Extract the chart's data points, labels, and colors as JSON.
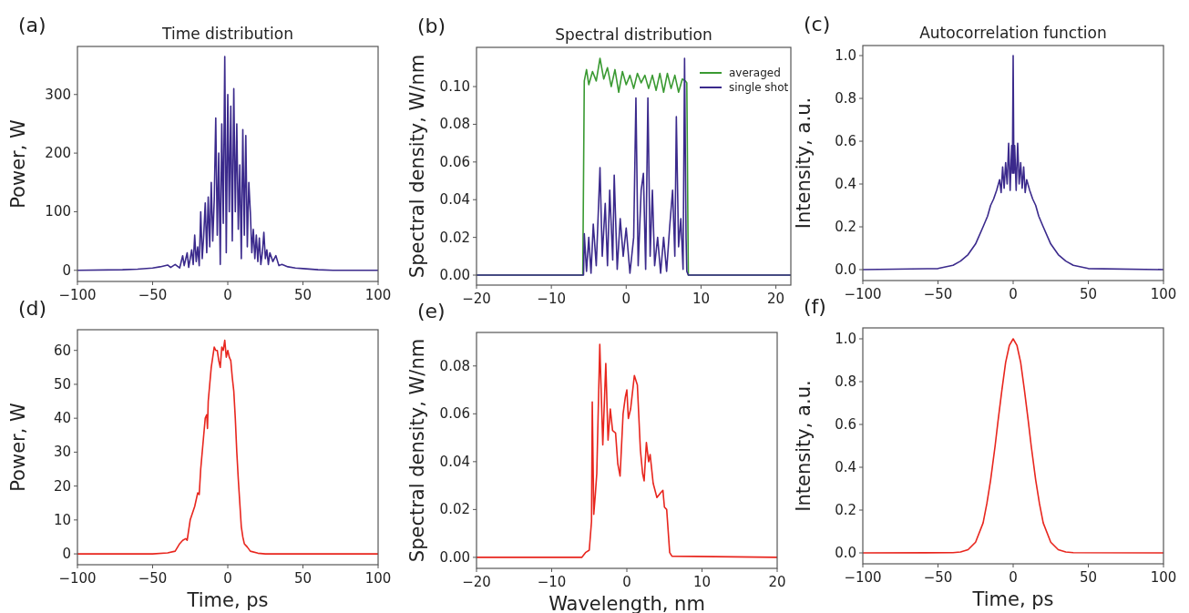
{
  "chart_data": [
    {
      "type": "line",
      "title": "Time distribution",
      "ylabel": "Power, W",
      "annotations": [
        "(a)"
      ],
      "xlim": [
        -100,
        100
      ],
      "ylim": [
        -19,
        382
      ],
      "xticks": [
        {
          "value": -100,
          "label": "−100"
        },
        {
          "value": -50,
          "label": "−50"
        },
        0,
        50,
        100
      ],
      "yticks": [
        0,
        100,
        200,
        300
      ],
      "grid": false,
      "legend": false,
      "series": [
        {
          "color": "#3b2a8c",
          "x": [
            -100,
            -70,
            -60,
            -50,
            -45,
            -40,
            -38,
            -35,
            -32,
            -30,
            -29,
            -27,
            -26,
            -24,
            -23,
            -22,
            -21,
            -20,
            -19,
            -18,
            -17,
            -16,
            -15,
            -14,
            -13,
            -12,
            -11,
            -10,
            -9,
            -8,
            -7,
            -6,
            -5,
            -4,
            -3,
            -2,
            -1,
            0,
            1,
            2,
            3,
            4,
            5,
            6,
            7,
            8,
            9,
            10,
            11,
            12,
            13,
            14,
            15,
            16,
            17,
            18,
            19,
            20,
            21,
            22,
            23,
            24,
            25,
            26,
            27,
            28,
            30,
            32,
            34,
            36,
            40,
            45,
            50,
            60,
            70,
            100
          ],
          "values": [
            0,
            1,
            2,
            4,
            6,
            9,
            5,
            10,
            4,
            25,
            8,
            30,
            5,
            35,
            10,
            60,
            15,
            40,
            8,
            100,
            20,
            60,
            115,
            30,
            125,
            40,
            150,
            50,
            120,
            260,
            60,
            200,
            10,
            250,
            80,
            365,
            30,
            300,
            100,
            280,
            50,
            310,
            100,
            250,
            70,
            180,
            20,
            240,
            60,
            230,
            40,
            150,
            100,
            30,
            70,
            20,
            60,
            15,
            55,
            10,
            30,
            65,
            20,
            35,
            10,
            30,
            15,
            25,
            8,
            10,
            6,
            4,
            3,
            1,
            0,
            0
          ]
        }
      ]
    },
    {
      "type": "line",
      "title": "Spectral distribution",
      "ylabel": "Spectral density, W/nm",
      "annotations": [
        "(b)"
      ],
      "xlim": [
        -20,
        22
      ],
      "ylim": [
        -0.0053,
        0.1208
      ],
      "xticks": [
        {
          "value": -20,
          "label": "−20"
        },
        {
          "value": -10,
          "label": "−10"
        },
        0,
        10,
        20
      ],
      "yticks": [
        {
          "value": 0,
          "label": "0.00"
        },
        {
          "value": 0.02,
          "label": "0.02"
        },
        {
          "value": 0.04,
          "label": "0.04"
        },
        {
          "value": 0.06,
          "label": "0.06"
        },
        {
          "value": 0.08,
          "label": "0.08"
        },
        {
          "value": 0.1,
          "label": "0.10"
        }
      ],
      "grid": false,
      "legend": "top right",
      "series": [
        {
          "name": "averaged",
          "color": "#3a9a32",
          "x": [
            -20,
            -5.8,
            -5.6,
            -5.3,
            -5,
            -4.5,
            -4,
            -3.5,
            -3,
            -2.5,
            -2,
            -1.5,
            -1,
            -0.5,
            0,
            0.5,
            1,
            1.5,
            2,
            2.5,
            3,
            3.5,
            4,
            4.5,
            5,
            5.5,
            6,
            6.5,
            7,
            7.5,
            7.9,
            8.1,
            8.3,
            22
          ],
          "values": [
            0,
            0,
            0.103,
            0.109,
            0.101,
            0.108,
            0.103,
            0.115,
            0.104,
            0.11,
            0.1,
            0.109,
            0.097,
            0.108,
            0.101,
            0.106,
            0.099,
            0.107,
            0.102,
            0.106,
            0.099,
            0.106,
            0.098,
            0.107,
            0.097,
            0.107,
            0.099,
            0.106,
            0.097,
            0.104,
            0.103,
            0.102,
            0,
            0
          ]
        },
        {
          "name": "single shot",
          "color": "#3b2a8c",
          "x": [
            -20,
            -5.7,
            -5.6,
            -5.3,
            -5,
            -4.7,
            -4.4,
            -4,
            -3.5,
            -3.2,
            -2.8,
            -2.5,
            -2.2,
            -1.8,
            -1.6,
            -1.2,
            -0.8,
            -0.4,
            0,
            0.5,
            1,
            1.3,
            1.6,
            2,
            2.3,
            2.6,
            2.9,
            3.2,
            3.5,
            3.8,
            4.2,
            4.6,
            5,
            5.4,
            5.8,
            6.2,
            6.5,
            6.7,
            7,
            7.3,
            7.6,
            7.8,
            8,
            8.1,
            8.3,
            22
          ],
          "values": [
            0,
            0,
            0.022,
            0.002,
            0.02,
            0.001,
            0.027,
            0.005,
            0.057,
            0.01,
            0.038,
            0.005,
            0.045,
            0.008,
            0.053,
            0.003,
            0.03,
            0.01,
            0.025,
            0.001,
            0.02,
            0.094,
            0.005,
            0.045,
            0.054,
            0.003,
            0.094,
            0.01,
            0.045,
            0.005,
            0.02,
            0.001,
            0.02,
            0.002,
            0.025,
            0.045,
            0.01,
            0.084,
            0.015,
            0.03,
            0.003,
            0.115,
            0.02,
            0.002,
            0,
            0
          ]
        }
      ]
    },
    {
      "type": "line",
      "title": "Autocorrelation function",
      "ylabel": "Intensity, a.u.",
      "annotations": [
        "(c)"
      ],
      "xlim": [
        -100,
        100
      ],
      "ylim": [
        -0.051,
        1.047
      ],
      "xticks": [
        {
          "value": -100,
          "label": "−100"
        },
        {
          "value": -50,
          "label": "−50"
        },
        0,
        50,
        100
      ],
      "yticks": [
        {
          "value": 0,
          "label": "0.0"
        },
        0.2,
        0.4,
        0.6,
        0.8,
        {
          "value": 1,
          "label": "1.0"
        }
      ],
      "grid": false,
      "legend": false,
      "series": [
        {
          "color": "#3b2a8c",
          "x": [
            -100,
            -50,
            -40,
            -35,
            -30,
            -25,
            -20,
            -17,
            -15,
            -13,
            -11,
            -9,
            -8,
            -7,
            -6,
            -5,
            -4,
            -3,
            -2,
            -1,
            -0.5,
            0,
            0.5,
            1,
            2,
            3,
            4,
            5,
            6,
            7,
            8,
            9,
            11,
            13,
            15,
            17,
            20,
            25,
            30,
            35,
            40,
            50,
            100
          ],
          "values": [
            0,
            0.005,
            0.02,
            0.04,
            0.07,
            0.12,
            0.2,
            0.25,
            0.3,
            0.33,
            0.37,
            0.42,
            0.36,
            0.48,
            0.38,
            0.5,
            0.4,
            0.59,
            0.37,
            0.58,
            0.45,
            1,
            0.45,
            0.58,
            0.37,
            0.59,
            0.4,
            0.5,
            0.38,
            0.48,
            0.36,
            0.42,
            0.37,
            0.33,
            0.3,
            0.25,
            0.2,
            0.12,
            0.07,
            0.04,
            0.02,
            0.005,
            0
          ]
        }
      ]
    },
    {
      "type": "line",
      "xlabel": "Time, ps",
      "ylabel": "Power, W",
      "annotations": [
        "(d)"
      ],
      "xlim": [
        -100,
        100
      ],
      "ylim": [
        -3.2,
        66.1
      ],
      "xticks": [
        {
          "value": -100,
          "label": "−100"
        },
        {
          "value": -50,
          "label": "−50"
        },
        0,
        50,
        100
      ],
      "yticks": [
        0,
        10,
        20,
        30,
        40,
        50,
        60
      ],
      "grid": false,
      "legend": false,
      "series": [
        {
          "color": "#e8261e",
          "x": [
            -100,
            -50,
            -40,
            -35,
            -32,
            -30,
            -28,
            -27,
            -25,
            -22,
            -20,
            -19,
            -18,
            -16,
            -15,
            -14,
            -13.5,
            -13,
            -12,
            -11,
            -10,
            -9,
            -8,
            -7,
            -6,
            -5,
            -4,
            -3,
            -2,
            -1,
            0,
            1,
            2,
            3,
            4,
            5,
            6,
            7,
            8,
            9,
            10,
            11,
            13,
            15,
            20,
            25,
            100
          ],
          "values": [
            0,
            0,
            0.3,
            0.8,
            3,
            4,
            4.5,
            4,
            10,
            14,
            18,
            17.5,
            25,
            35,
            40,
            41,
            37,
            45,
            50,
            55,
            58,
            61,
            60,
            60,
            57,
            55,
            61,
            60,
            63,
            58,
            60,
            58,
            57,
            52,
            48,
            40,
            30,
            22,
            15,
            8,
            5,
            3,
            2,
            0.8,
            0.2,
            0,
            0
          ]
        }
      ]
    },
    {
      "type": "line",
      "xlabel": "Wavelength, nm",
      "ylabel": "Spectral density, W/nm",
      "annotations": [
        "(e)"
      ],
      "xlim": [
        -20,
        20
      ],
      "ylim": [
        -0.0046,
        0.094
      ],
      "xticks": [
        {
          "value": -20,
          "label": "−20"
        },
        {
          "value": -10,
          "label": "−10"
        },
        0,
        10,
        20
      ],
      "yticks": [
        {
          "value": 0,
          "label": "0.00"
        },
        {
          "value": 0.02,
          "label": "0.02"
        },
        {
          "value": 0.04,
          "label": "0.04"
        },
        {
          "value": 0.06,
          "label": "0.06"
        },
        {
          "value": 0.08,
          "label": "0.08"
        }
      ],
      "grid": false,
      "legend": false,
      "series": [
        {
          "color": "#e8261e",
          "x": [
            -20,
            -6,
            -5.5,
            -5,
            -4.7,
            -4.6,
            -4.4,
            -4.2,
            -4,
            -3.6,
            -3.2,
            -2.8,
            -2.5,
            -2.2,
            -1.9,
            -1.5,
            -1.2,
            -0.9,
            -0.5,
            -0.2,
            0,
            0.2,
            0.5,
            1,
            1.4,
            1.8,
            2.1,
            2.3,
            2.6,
            2.9,
            3.1,
            3.5,
            4,
            4.5,
            4.8,
            5,
            5.3,
            5.7,
            6,
            20
          ],
          "values": [
            0,
            0,
            0.002,
            0.003,
            0.015,
            0.065,
            0.018,
            0.026,
            0.035,
            0.089,
            0.047,
            0.081,
            0.049,
            0.062,
            0.053,
            0.052,
            0.039,
            0.034,
            0.06,
            0.067,
            0.07,
            0.058,
            0.062,
            0.076,
            0.072,
            0.045,
            0.035,
            0.032,
            0.048,
            0.04,
            0.043,
            0.031,
            0.025,
            0.027,
            0.028,
            0.021,
            0.02,
            0.002,
            0.0005,
            0
          ]
        }
      ]
    },
    {
      "type": "line",
      "xlabel": "Time, ps",
      "ylabel": "Intensity, a.u.",
      "annotations": [
        "(f)"
      ],
      "xlim": [
        -100,
        100
      ],
      "ylim": [
        -0.051,
        1.051
      ],
      "xticks": [
        {
          "value": -100,
          "label": "−100"
        },
        {
          "value": -50,
          "label": "−50"
        },
        0,
        50,
        100
      ],
      "yticks": [
        {
          "value": 0,
          "label": "0.0"
        },
        0.2,
        0.4,
        0.6,
        0.8,
        {
          "value": 1,
          "label": "1.0"
        }
      ],
      "grid": false,
      "legend": false,
      "series": [
        {
          "color": "#e8261e",
          "x": [
            -100,
            -40,
            -35,
            -30,
            -25,
            -20,
            -17.5,
            -15,
            -12,
            -10,
            -7.5,
            -5,
            -2.5,
            0,
            2.5,
            5,
            7.5,
            10,
            12,
            15,
            17.5,
            20,
            25,
            30,
            35,
            40,
            100
          ],
          "values": [
            0,
            0.001,
            0.004,
            0.015,
            0.05,
            0.14,
            0.23,
            0.34,
            0.5,
            0.62,
            0.76,
            0.89,
            0.97,
            1,
            0.97,
            0.89,
            0.76,
            0.62,
            0.5,
            0.34,
            0.23,
            0.14,
            0.05,
            0.015,
            0.004,
            0.001,
            0
          ]
        }
      ]
    }
  ]
}
